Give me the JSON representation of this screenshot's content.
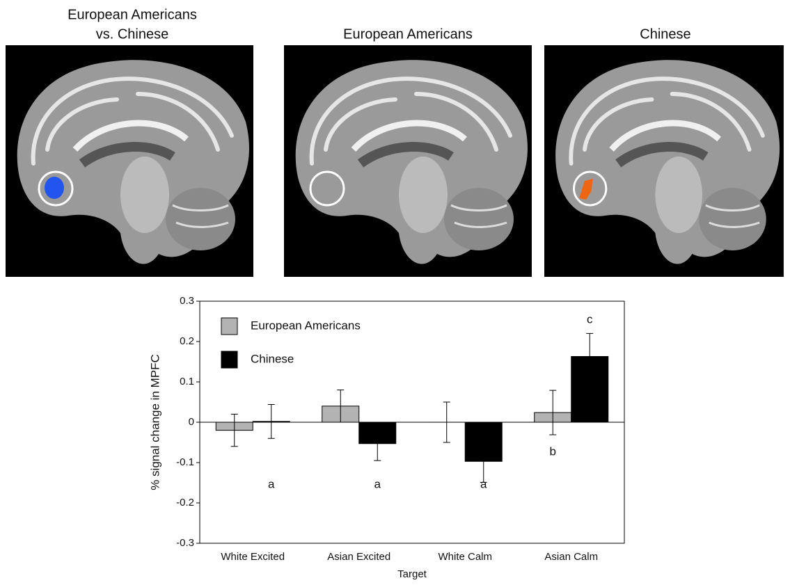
{
  "panels": [
    {
      "title": [
        "European Americans",
        "vs. Chinese"
      ]
    },
    {
      "title": [
        "European Americans"
      ]
    },
    {
      "title": [
        "Chinese"
      ]
    }
  ],
  "chart_data": {
    "type": "bar",
    "categories": [
      "White Excited",
      "Asian Excited",
      "White Calm",
      "Asian Calm"
    ],
    "series": [
      {
        "name": "European Americans",
        "color": "#b3b3b3",
        "values": [
          -0.02,
          0.04,
          0.0,
          0.024
        ],
        "errors": [
          0.04,
          0.04,
          0.05,
          0.055
        ]
      },
      {
        "name": "Chinese",
        "color": "#000000",
        "values": [
          0.002,
          -0.053,
          -0.097,
          0.163
        ],
        "errors": [
          0.042,
          0.042,
          0.052,
          0.057
        ]
      }
    ],
    "annotations": [
      {
        "text": "a",
        "category": "White Excited",
        "series": "Chinese"
      },
      {
        "text": "a",
        "category": "Asian Excited",
        "series": "Chinese"
      },
      {
        "text": "a",
        "category": "White Calm",
        "series": "Chinese"
      },
      {
        "text": "b",
        "category": "Asian Calm",
        "series": "European Americans"
      },
      {
        "text": "c",
        "category": "Asian Calm",
        "series": "Chinese"
      }
    ],
    "xlabel": "Target",
    "ylabel": "% signal change in MPFC",
    "ylim": [
      -0.3,
      0.3
    ],
    "yticks": [
      0.3,
      0.2,
      0.1,
      0,
      -0.1,
      -0.2,
      -0.3
    ],
    "legend": "upper-left"
  }
}
